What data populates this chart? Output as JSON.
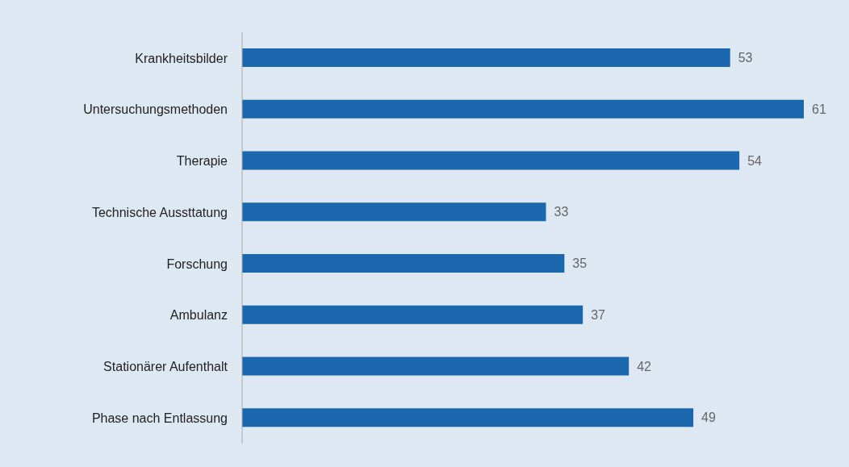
{
  "chart_data": {
    "type": "bar",
    "orientation": "horizontal",
    "categories": [
      "Krankheitsbilder",
      "Untersuchungsmethoden",
      "Therapie",
      "Technische Aussttatung",
      "Forschung",
      "Ambulanz",
      "Stationärer Aufenthalt",
      "Phase nach Entlassung"
    ],
    "values": [
      53,
      61,
      54,
      33,
      35,
      37,
      42,
      49
    ],
    "color": "#1a67ad",
    "data_labels": true,
    "tick_labels": "y"
  }
}
